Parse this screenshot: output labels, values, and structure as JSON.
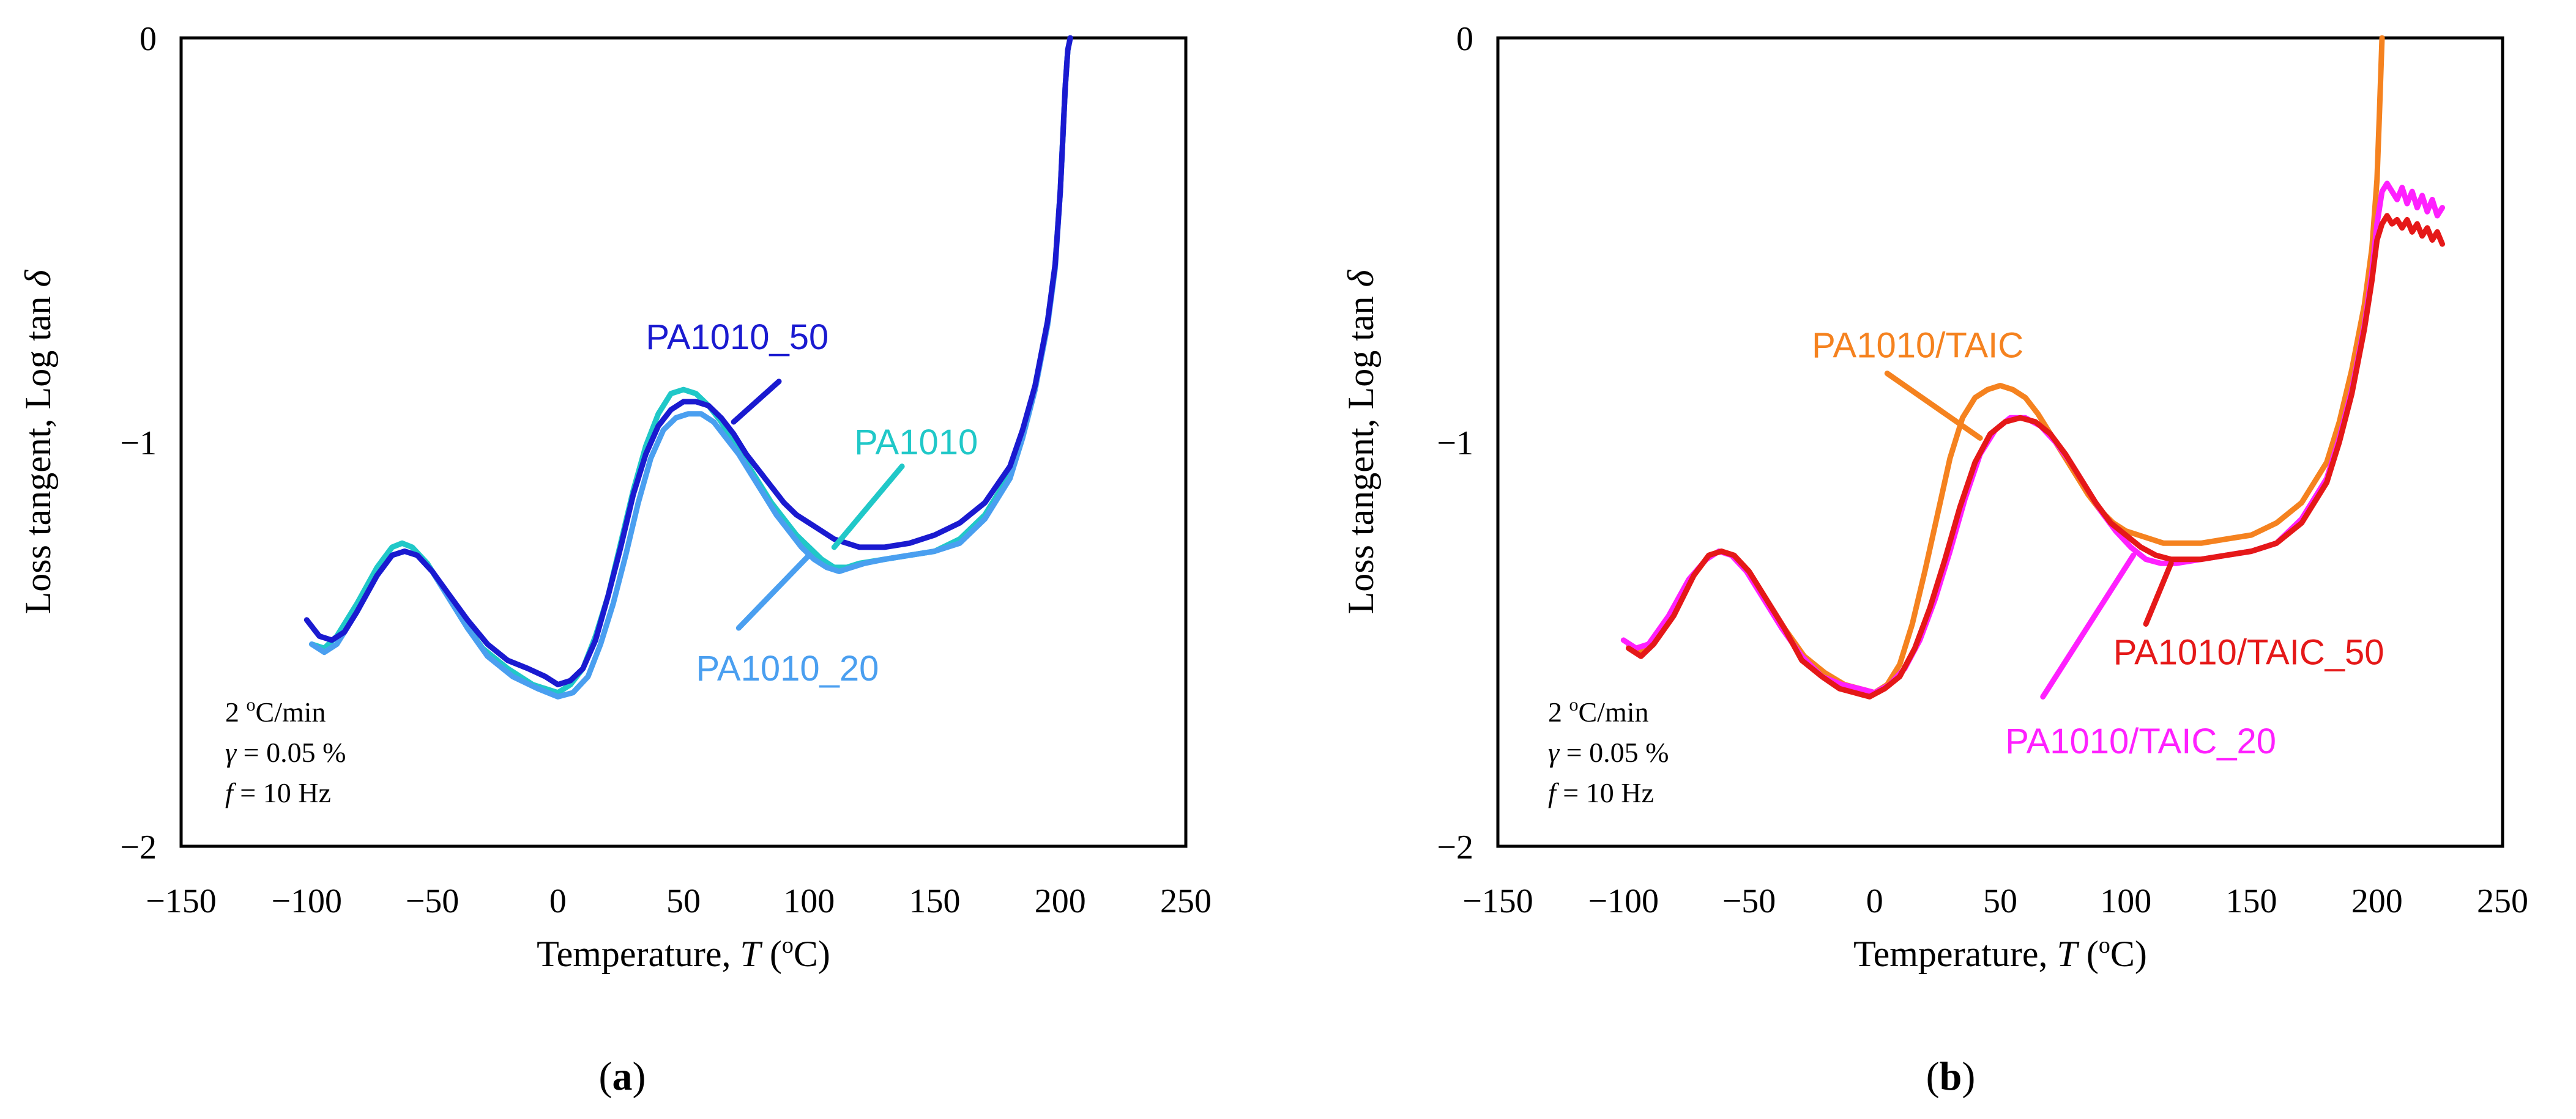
{
  "colors": {
    "PA1010": "#20c8c8",
    "PA1010_20": "#4a9ff0",
    "PA1010_50": "#1a1ad0",
    "PA1010/TAIC": "#f5821f",
    "PA1010/TAIC_20": "#ff20ff",
    "PA1010/TAIC_50": "#e51818"
  },
  "chart_data": [
    {
      "type": "line",
      "panel_label": "(a)",
      "panel_letter": "a",
      "xlabel_main": "Temperature, ",
      "xlabel_sym": "T",
      "xlabel_unit": " (",
      "xlabel_sup": "o",
      "xlabel_end": "C)",
      "ylabel_main": "Loss tangent, Log tan ",
      "ylabel_sym": "δ",
      "xlim": [
        -150,
        250
      ],
      "ylim": [
        -2,
        0
      ],
      "xticks": [
        "−150",
        "−100",
        "−50",
        "0",
        "50",
        "100",
        "150",
        "200",
        "250"
      ],
      "xtick_values": [
        -150,
        -100,
        -50,
        0,
        50,
        100,
        150,
        200,
        250
      ],
      "yticks": [
        "0",
        "−1",
        "−2"
      ],
      "ytick_values": [
        0,
        -1,
        -2
      ],
      "grid": false,
      "conditions": {
        "rate": "2 ",
        "rate_sup": "o",
        "rate_end": "C/min",
        "strain_sym": "γ",
        "strain": " = 0.05 %",
        "freq_sym": "f",
        "freq": " = 10 Hz"
      },
      "series": [
        {
          "name": "PA1010",
          "color_key": "PA1010",
          "x": [
            -98,
            -93,
            -88,
            -80,
            -72,
            -66,
            -62,
            -58,
            -52,
            -45,
            -38,
            -30,
            -20,
            -10,
            0,
            5,
            10,
            15,
            20,
            25,
            30,
            35,
            40,
            45,
            50,
            55,
            60,
            65,
            70,
            75,
            80,
            85,
            90,
            95,
            100,
            105,
            110,
            115,
            120,
            130,
            140,
            150,
            160,
            170,
            180,
            185,
            190,
            195,
            198,
            200,
            201,
            202,
            203,
            204
          ],
          "y": [
            -1.5,
            -1.51,
            -1.48,
            -1.4,
            -1.31,
            -1.26,
            -1.25,
            -1.26,
            -1.3,
            -1.37,
            -1.44,
            -1.51,
            -1.56,
            -1.6,
            -1.62,
            -1.6,
            -1.56,
            -1.48,
            -1.38,
            -1.25,
            -1.12,
            -1.01,
            -0.93,
            -0.88,
            -0.87,
            -0.88,
            -0.91,
            -0.95,
            -1.0,
            -1.05,
            -1.1,
            -1.15,
            -1.19,
            -1.23,
            -1.26,
            -1.29,
            -1.31,
            -1.31,
            -1.3,
            -1.29,
            -1.28,
            -1.27,
            -1.24,
            -1.18,
            -1.08,
            -0.98,
            -0.86,
            -0.7,
            -0.56,
            -0.38,
            -0.25,
            -0.12,
            -0.03,
            0.0
          ]
        },
        {
          "name": "PA1010_20",
          "color_key": "PA1010_20",
          "x": [
            -98,
            -93,
            -88,
            -80,
            -72,
            -66,
            -61,
            -56,
            -50,
            -43,
            -36,
            -28,
            -18,
            -8,
            0,
            6,
            12,
            17,
            22,
            27,
            32,
            37,
            42,
            47,
            52,
            57,
            62,
            67,
            72,
            77,
            82,
            87,
            92,
            97,
            102,
            107,
            112,
            117,
            122,
            130,
            140,
            150,
            160,
            170,
            180,
            185,
            190,
            195,
            198,
            200,
            201,
            202,
            203,
            204
          ],
          "y": [
            -1.5,
            -1.52,
            -1.5,
            -1.42,
            -1.33,
            -1.28,
            -1.27,
            -1.28,
            -1.32,
            -1.39,
            -1.46,
            -1.53,
            -1.58,
            -1.61,
            -1.63,
            -1.62,
            -1.58,
            -1.5,
            -1.4,
            -1.28,
            -1.15,
            -1.04,
            -0.97,
            -0.94,
            -0.93,
            -0.93,
            -0.95,
            -0.99,
            -1.03,
            -1.08,
            -1.13,
            -1.18,
            -1.22,
            -1.26,
            -1.29,
            -1.31,
            -1.32,
            -1.31,
            -1.3,
            -1.29,
            -1.28,
            -1.27,
            -1.25,
            -1.19,
            -1.09,
            -0.99,
            -0.87,
            -0.71,
            -0.57,
            -0.38,
            -0.25,
            -0.12,
            -0.03,
            0.0
          ]
        },
        {
          "name": "PA1010_50",
          "color_key": "PA1010_50",
          "x": [
            -100,
            -95,
            -90,
            -85,
            -80,
            -72,
            -66,
            -61,
            -56,
            -50,
            -43,
            -36,
            -28,
            -20,
            -12,
            -5,
            0,
            5,
            10,
            15,
            20,
            25,
            30,
            35,
            40,
            45,
            50,
            55,
            60,
            65,
            70,
            75,
            80,
            85,
            90,
            95,
            100,
            105,
            110,
            120,
            130,
            140,
            150,
            160,
            170,
            180,
            185,
            190,
            195,
            198,
            200,
            201,
            202,
            203,
            204
          ],
          "y": [
            -1.44,
            -1.48,
            -1.49,
            -1.47,
            -1.42,
            -1.33,
            -1.28,
            -1.27,
            -1.28,
            -1.32,
            -1.38,
            -1.44,
            -1.5,
            -1.54,
            -1.56,
            -1.58,
            -1.6,
            -1.59,
            -1.56,
            -1.49,
            -1.38,
            -1.26,
            -1.13,
            -1.03,
            -0.96,
            -0.92,
            -0.9,
            -0.9,
            -0.91,
            -0.94,
            -0.98,
            -1.03,
            -1.07,
            -1.11,
            -1.15,
            -1.18,
            -1.2,
            -1.22,
            -1.24,
            -1.26,
            -1.26,
            -1.25,
            -1.23,
            -1.2,
            -1.15,
            -1.06,
            -0.97,
            -0.86,
            -0.7,
            -0.56,
            -0.38,
            -0.25,
            -0.12,
            -0.03,
            0.0
          ]
        }
      ],
      "annotations": [
        {
          "text": "PA1010_50",
          "color_key": "PA1010_50",
          "tx": 35,
          "ty": -0.74,
          "anchor": "start",
          "lx1": 88,
          "ly1": -0.85,
          "lx2": 70,
          "ly2": -0.95
        },
        {
          "text": "PA1010",
          "color_key": "PA1010",
          "tx": 118,
          "ty": -1.0,
          "anchor": "start",
          "lx1": 137,
          "ly1": -1.06,
          "lx2": 110,
          "ly2": -1.26
        },
        {
          "text": "PA1010_20",
          "color_key": "PA1010_20",
          "tx": 55,
          "ty": -1.56,
          "anchor": "start",
          "lx1": 72,
          "ly1": -1.46,
          "lx2": 100,
          "ly2": -1.28
        }
      ]
    },
    {
      "type": "line",
      "panel_label": "(b)",
      "panel_letter": "b",
      "xlabel_main": "Temperature, ",
      "xlabel_sym": "T",
      "xlabel_unit": " (",
      "xlabel_sup": "o",
      "xlabel_end": "C)",
      "ylabel_main": "Loss tangent, Log tan ",
      "ylabel_sym": "δ",
      "xlim": [
        -150,
        250
      ],
      "ylim": [
        -2,
        0
      ],
      "xticks": [
        "−150",
        "−100",
        "−50",
        "0",
        "50",
        "100",
        "150",
        "200",
        "250"
      ],
      "xtick_values": [
        -150,
        -100,
        -50,
        0,
        50,
        100,
        150,
        200,
        250
      ],
      "yticks": [
        "0",
        "−1",
        "−2"
      ],
      "ytick_values": [
        0,
        -1,
        -2
      ],
      "grid": false,
      "conditions": {
        "rate": "2 ",
        "rate_sup": "o",
        "rate_end": "C/min",
        "strain_sym": "γ",
        "strain": " = 0.05 %",
        "freq_sym": "f",
        "freq": " = 10 Hz"
      },
      "series": [
        {
          "name": "PA1010/TAIC",
          "color_key": "PA1010/TAIC",
          "x": [
            -98,
            -93,
            -88,
            -80,
            -72,
            -66,
            -61,
            -56,
            -50,
            -43,
            -36,
            -28,
            -20,
            -12,
            -6,
            0,
            5,
            10,
            15,
            20,
            25,
            30,
            35,
            40,
            45,
            50,
            55,
            60,
            65,
            70,
            75,
            80,
            85,
            90,
            95,
            100,
            105,
            110,
            115,
            120,
            130,
            140,
            150,
            160,
            170,
            180,
            185,
            190,
            195,
            198,
            200,
            201,
            202
          ],
          "y": [
            -1.5,
            -1.52,
            -1.5,
            -1.42,
            -1.33,
            -1.28,
            -1.27,
            -1.28,
            -1.32,
            -1.39,
            -1.46,
            -1.53,
            -1.57,
            -1.6,
            -1.61,
            -1.62,
            -1.6,
            -1.55,
            -1.45,
            -1.32,
            -1.18,
            -1.04,
            -0.94,
            -0.89,
            -0.87,
            -0.86,
            -0.87,
            -0.89,
            -0.93,
            -0.98,
            -1.03,
            -1.08,
            -1.13,
            -1.17,
            -1.2,
            -1.22,
            -1.23,
            -1.24,
            -1.25,
            -1.25,
            -1.25,
            -1.24,
            -1.23,
            -1.2,
            -1.15,
            -1.05,
            -0.95,
            -0.82,
            -0.66,
            -0.52,
            -0.35,
            -0.18,
            0.0
          ]
        },
        {
          "name": "PA1010/TAIC_20",
          "color_key": "PA1010/TAIC_20",
          "x": [
            -100,
            -95,
            -90,
            -82,
            -74,
            -67,
            -62,
            -57,
            -51,
            -44,
            -37,
            -29,
            -21,
            -13,
            -6,
            0,
            6,
            12,
            18,
            24,
            30,
            36,
            42,
            48,
            54,
            60,
            66,
            72,
            78,
            84,
            90,
            96,
            102,
            108,
            114,
            120,
            130,
            140,
            150,
            160,
            170,
            180,
            185,
            190,
            195,
            198,
            200,
            202,
            204,
            206,
            208,
            210,
            212,
            214,
            216,
            218,
            220,
            222,
            224,
            226
          ],
          "y": [
            -1.49,
            -1.51,
            -1.5,
            -1.43,
            -1.34,
            -1.29,
            -1.27,
            -1.28,
            -1.32,
            -1.39,
            -1.46,
            -1.53,
            -1.58,
            -1.6,
            -1.61,
            -1.62,
            -1.6,
            -1.56,
            -1.49,
            -1.39,
            -1.27,
            -1.14,
            -1.03,
            -0.97,
            -0.94,
            -0.94,
            -0.96,
            -1.0,
            -1.05,
            -1.11,
            -1.17,
            -1.22,
            -1.26,
            -1.29,
            -1.3,
            -1.3,
            -1.29,
            -1.28,
            -1.27,
            -1.25,
            -1.19,
            -1.09,
            -0.99,
            -0.87,
            -0.71,
            -0.58,
            -0.46,
            -0.38,
            -0.36,
            -0.38,
            -0.4,
            -0.37,
            -0.41,
            -0.38,
            -0.42,
            -0.39,
            -0.43,
            -0.4,
            -0.44,
            -0.42
          ]
        },
        {
          "name": "PA1010/TAIC_50",
          "color_key": "PA1010/TAIC_50",
          "x": [
            -98,
            -93,
            -88,
            -80,
            -72,
            -66,
            -61,
            -56,
            -50,
            -43,
            -36,
            -29,
            -21,
            -14,
            -8,
            -2,
            4,
            10,
            16,
            22,
            28,
            34,
            40,
            46,
            52,
            58,
            64,
            70,
            76,
            82,
            88,
            94,
            100,
            106,
            112,
            118,
            124,
            130,
            140,
            150,
            160,
            170,
            180,
            185,
            190,
            195,
            198,
            200,
            202,
            204,
            206,
            208,
            210,
            212,
            214,
            216,
            218,
            220,
            222,
            224,
            226
          ],
          "y": [
            -1.51,
            -1.53,
            -1.5,
            -1.43,
            -1.33,
            -1.28,
            -1.27,
            -1.28,
            -1.32,
            -1.39,
            -1.46,
            -1.54,
            -1.58,
            -1.61,
            -1.62,
            -1.63,
            -1.61,
            -1.58,
            -1.51,
            -1.41,
            -1.29,
            -1.16,
            -1.05,
            -0.98,
            -0.95,
            -0.94,
            -0.95,
            -0.98,
            -1.03,
            -1.09,
            -1.15,
            -1.2,
            -1.23,
            -1.26,
            -1.28,
            -1.29,
            -1.29,
            -1.29,
            -1.28,
            -1.27,
            -1.25,
            -1.2,
            -1.1,
            -1.0,
            -0.88,
            -0.72,
            -0.6,
            -0.5,
            -0.46,
            -0.44,
            -0.46,
            -0.45,
            -0.47,
            -0.45,
            -0.48,
            -0.46,
            -0.49,
            -0.47,
            -0.5,
            -0.48,
            -0.51
          ]
        }
      ],
      "annotations": [
        {
          "text": "PA1010/TAIC",
          "color_key": "PA1010/TAIC",
          "tx": -25,
          "ty": -0.76,
          "anchor": "start",
          "lx1": 5,
          "ly1": -0.83,
          "lx2": 42,
          "ly2": -0.99
        },
        {
          "text": "PA1010/TAIC_50",
          "color_key": "PA1010/TAIC_50",
          "tx": 95,
          "ty": -1.52,
          "anchor": "start",
          "lx1": 108,
          "ly1": -1.45,
          "lx2": 118,
          "ly2": -1.3
        },
        {
          "text": "PA1010/TAIC_20",
          "color_key": "PA1010/TAIC_20",
          "tx": 52,
          "ty": -1.74,
          "anchor": "start",
          "lx1": 67,
          "ly1": -1.63,
          "lx2": 103,
          "ly2": -1.28
        }
      ]
    }
  ]
}
